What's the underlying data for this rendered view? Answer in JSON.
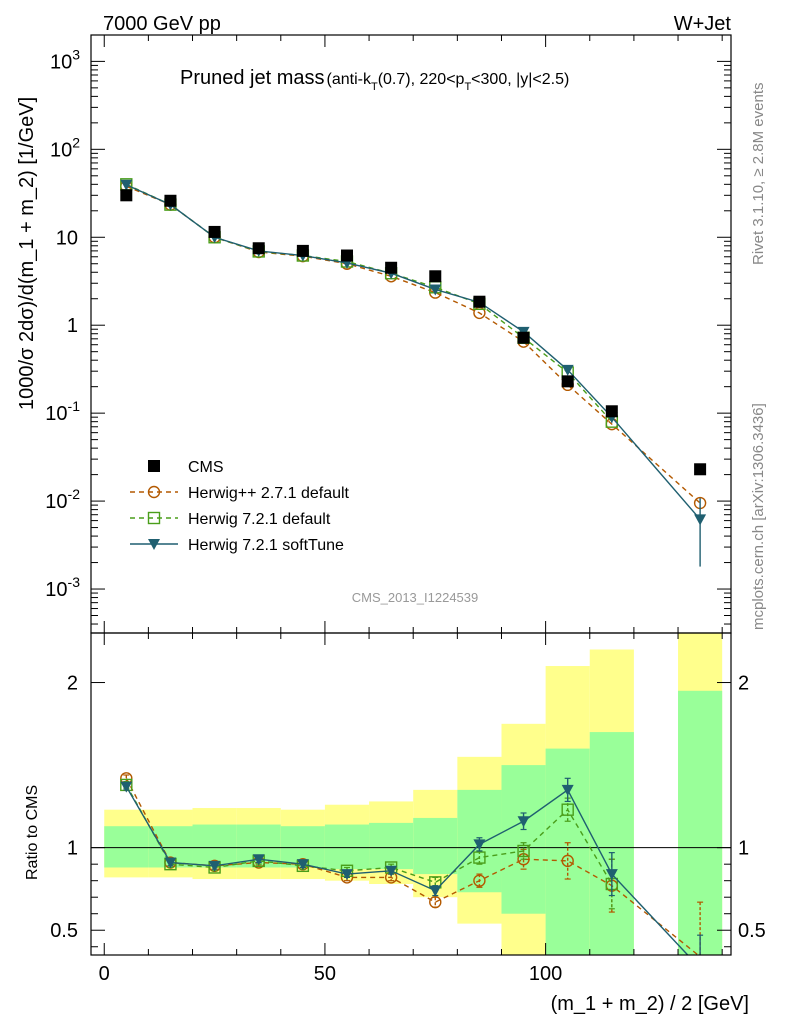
{
  "chart_data": {
    "type": "line",
    "header": {
      "left": "7000 GeV pp",
      "right": "W+Jet"
    },
    "title_main": "Pruned jet mass",
    "title_sub": "(anti-k",
    "title_sub_T": "T",
    "title_sub_rest": "(0.7), 220<p",
    "title_sub_rest2": "<300, |y|<2.5)",
    "watermark": "CMS_2013_I1224539",
    "side_label_top": "Rivet 3.1.10, ≥ 2.8M events",
    "side_label_bottom": "mcplots.cern.ch [arXiv:1306.3436]",
    "ylabel": "1000/σ 2dσ)/d(m_1 + m_2) [1/GeV]",
    "xlabel": "(m_1 + m_2) / 2 [GeV]",
    "ratio_ylabel": "Ratio to CMS",
    "xlim": [
      -3,
      142
    ],
    "ylim_log": [
      -3.5,
      3.3
    ],
    "ratio_ylim": [
      0.35,
      2.3
    ],
    "x_ticks": [
      "0",
      "50",
      "100"
    ],
    "x_tick_values": [
      0,
      50,
      100
    ],
    "y_ticks": [
      {
        "v": 0.001,
        "base": "10",
        "exp": "-3"
      },
      {
        "v": 0.01,
        "base": "10",
        "exp": "-2"
      },
      {
        "v": 0.1,
        "base": "10",
        "exp": "-1"
      },
      {
        "v": 1,
        "base": "1",
        "exp": ""
      },
      {
        "v": 10,
        "base": "10",
        "exp": ""
      },
      {
        "v": 100,
        "base": "10",
        "exp": "2"
      },
      {
        "v": 1000,
        "base": "10",
        "exp": "3"
      }
    ],
    "ratio_ticks": [
      {
        "v": 0.5,
        "label": "0.5"
      },
      {
        "v": 1,
        "label": "1"
      },
      {
        "v": 2,
        "label": "2"
      }
    ],
    "x": [
      5,
      15,
      25,
      35,
      45,
      55,
      65,
      75,
      85,
      95,
      105,
      115,
      135
    ],
    "bin_edges": [
      [
        0,
        10
      ],
      [
        10,
        20
      ],
      [
        20,
        30
      ],
      [
        30,
        40
      ],
      [
        40,
        50
      ],
      [
        50,
        60
      ],
      [
        60,
        70
      ],
      [
        70,
        80
      ],
      [
        80,
        90
      ],
      [
        90,
        100
      ],
      [
        100,
        110
      ],
      [
        110,
        120
      ],
      [
        130,
        140
      ]
    ],
    "data": {
      "name": "CMS",
      "values": [
        30,
        26,
        11.5,
        7.5,
        7.0,
        6.2,
        4.5,
        3.6,
        1.85,
        0.72,
        0.23,
        0.105,
        0.023
      ]
    },
    "band_inner": [
      [
        0.88,
        1.13
      ],
      [
        0.88,
        1.13
      ],
      [
        0.88,
        1.14
      ],
      [
        0.88,
        1.14
      ],
      [
        0.88,
        1.13
      ],
      [
        0.87,
        1.14
      ],
      [
        0.87,
        1.15
      ],
      [
        0.84,
        1.18
      ],
      [
        0.73,
        1.35
      ],
      [
        0.6,
        1.5
      ],
      [
        0.35,
        1.6
      ],
      [
        0.35,
        1.7
      ],
      [
        0.35,
        1.95
      ]
    ],
    "band_outer": [
      [
        0.82,
        1.23
      ],
      [
        0.82,
        1.23
      ],
      [
        0.81,
        1.24
      ],
      [
        0.81,
        1.24
      ],
      [
        0.81,
        1.23
      ],
      [
        0.8,
        1.26
      ],
      [
        0.78,
        1.28
      ],
      [
        0.7,
        1.35
      ],
      [
        0.54,
        1.55
      ],
      [
        0.35,
        1.75
      ],
      [
        0.35,
        2.1
      ],
      [
        0.35,
        2.2
      ],
      [
        0.35,
        2.3
      ]
    ],
    "series": [
      {
        "name": "Herwig++ 2.7.1 default",
        "color": "#b35900",
        "marker": "circle",
        "dashed": true,
        "values": [
          38,
          23.5,
          10,
          6.8,
          6.1,
          5.0,
          3.6,
          2.35,
          1.38,
          0.65,
          0.21,
          0.075,
          0.0095
        ],
        "ratio": [
          1.42,
          0.91,
          0.89,
          0.91,
          0.9,
          0.82,
          0.82,
          0.67,
          0.8,
          0.93,
          0.92,
          0.77,
          0.34
        ],
        "ratio_err": [
          0.02,
          0.02,
          0.02,
          0.02,
          0.02,
          0.02,
          0.02,
          0.03,
          0.04,
          0.06,
          0.11,
          0.16,
          0.33
        ]
      },
      {
        "name": "Herwig 7.2.1 default",
        "color": "#4a9e1a",
        "marker": "square",
        "dashed": true,
        "values": [
          40,
          23.5,
          10,
          6.9,
          6.2,
          5.3,
          3.9,
          2.7,
          1.75,
          0.72,
          0.29,
          0.08,
          null
        ],
        "ratio": [
          1.38,
          0.9,
          0.88,
          0.92,
          0.89,
          0.86,
          0.88,
          0.79,
          0.94,
          0.98,
          1.23,
          0.78,
          null
        ],
        "ratio_err": [
          0.02,
          0.02,
          0.02,
          0.02,
          0.02,
          0.02,
          0.02,
          0.03,
          0.04,
          0.05,
          0.07,
          0.15,
          null
        ]
      },
      {
        "name": "Herwig 7.2.1 softTune",
        "color": "#1f5f70",
        "marker": "triangle-down",
        "dashed": false,
        "values": [
          39.5,
          23.5,
          10,
          7.0,
          6.2,
          5.1,
          3.9,
          2.55,
          1.82,
          0.84,
          0.31,
          0.09,
          0.0062
        ],
        "ratio": [
          1.37,
          0.91,
          0.89,
          0.93,
          0.9,
          0.84,
          0.86,
          0.74,
          1.02,
          1.16,
          1.35,
          0.84,
          0.27
        ],
        "ratio_err": [
          0.02,
          0.02,
          0.02,
          0.02,
          0.02,
          0.02,
          0.02,
          0.03,
          0.04,
          0.05,
          0.07,
          0.13,
          0.2
        ],
        "value_err": [
          [
            1.5,
            1.5
          ],
          null,
          null,
          null,
          null,
          null,
          null,
          null,
          null,
          null,
          null,
          [
            0.012,
            0.012
          ],
          [
            0.0044,
            0.0046
          ]
        ]
      }
    ]
  }
}
